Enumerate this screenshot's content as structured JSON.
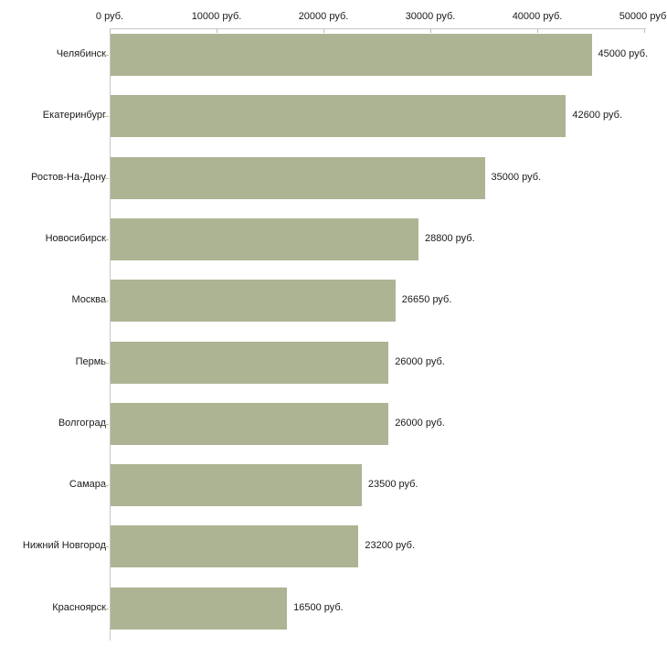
{
  "chart_data": {
    "type": "bar",
    "orientation": "horizontal",
    "title": "",
    "xlabel": "",
    "ylabel": "",
    "unit_suffix": " руб.",
    "xlim": [
      0,
      50000
    ],
    "grid": false,
    "legend": false,
    "x_ticks": {
      "values": [
        0,
        10000,
        20000,
        30000,
        40000,
        50000
      ],
      "labels": [
        "0 руб.",
        "10000 руб.",
        "20000 руб.",
        "30000 руб.",
        "40000 руб.",
        "50000 руб."
      ]
    },
    "categories": [
      "Челябинск",
      "Екатеринбург",
      "Ростов-На-Дону",
      "Новосибирск",
      "Москва",
      "Пермь",
      "Волгоград",
      "Самара",
      "Нижний Новгород",
      "Красноярск"
    ],
    "values": [
      45000,
      42600,
      35000,
      28800,
      26650,
      26000,
      26000,
      23500,
      23200,
      16500
    ],
    "value_labels": [
      "45000 руб.",
      "42600 руб.",
      "35000 руб.",
      "28800 руб.",
      "26650 руб.",
      "26000 руб.",
      "26000 руб.",
      "23500 руб.",
      "23200 руб.",
      "16500 руб."
    ],
    "colors": {
      "bar": "#adb494",
      "axis_line": "#c6c6c6",
      "tick_mark": "#c0c49c",
      "text": "#1a1a1a",
      "background": "#ffffff"
    }
  }
}
